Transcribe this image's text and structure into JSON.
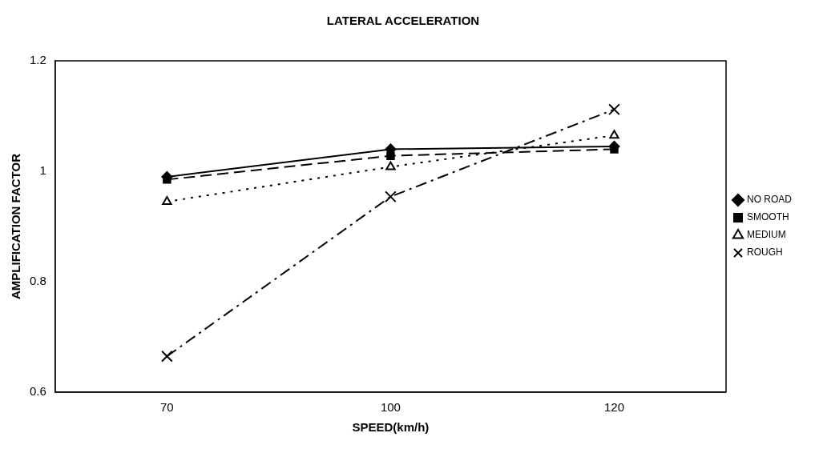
{
  "chart_data": {
    "type": "line",
    "title": "LATERAL ACCELERATION",
    "xlabel": "SPEED(km/h)",
    "ylabel": "AMPLIFICATION FACTOR",
    "categories": [
      "70",
      "100",
      "120"
    ],
    "ylim": [
      0.6,
      1.2
    ],
    "yticks": [
      0.6,
      0.8,
      1,
      1.2
    ],
    "grid": false,
    "legend": "right",
    "series": [
      {
        "name": "NO ROAD",
        "color": "#000000",
        "values": [
          0.99,
          1.04,
          1.045
        ],
        "marker": "diamond",
        "line_style": "solid"
      },
      {
        "name": "SMOOTH",
        "color": "#000000",
        "values": [
          0.985,
          1.028,
          1.04
        ],
        "marker": "square",
        "line_style": "dashed"
      },
      {
        "name": "MEDIUM",
        "color": "#000000",
        "values": [
          0.945,
          1.008,
          1.065
        ],
        "marker": "triangle",
        "line_style": "dotted"
      },
      {
        "name": "ROUGH",
        "color": "#000000",
        "values": [
          0.665,
          0.954,
          1.112
        ],
        "marker": "cross",
        "line_style": "dashdot"
      }
    ]
  }
}
